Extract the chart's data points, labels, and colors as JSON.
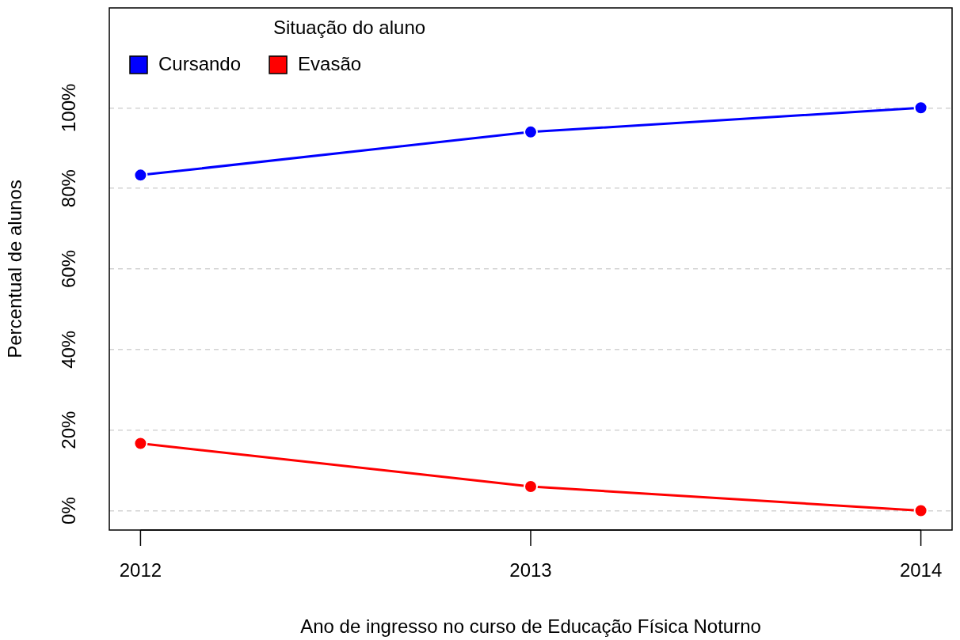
{
  "chart_data": {
    "type": "line",
    "xlabel": "Ano de ingresso no curso de Educação Física Noturno",
    "ylabel": "Percentual de alunos",
    "legend_title": "Situação do aluno",
    "x": [
      2012,
      2013,
      2014
    ],
    "xlim": [
      2011.92,
      2014.08
    ],
    "xticks": [
      2012,
      2013,
      2014
    ],
    "ylim": [
      -4.8,
      124.8
    ],
    "yticks": [
      {
        "value": 0,
        "label": "0%"
      },
      {
        "value": 20,
        "label": "20%"
      },
      {
        "value": 40,
        "label": "40%"
      },
      {
        "value": 60,
        "label": "60%"
      },
      {
        "value": 80,
        "label": "80%"
      },
      {
        "value": 100,
        "label": "100%"
      }
    ],
    "grid": "y",
    "legend": "top left",
    "marker": "circle",
    "line_style": "solid",
    "series": [
      {
        "name": "Cursando",
        "color": "#0000ff",
        "values": [
          83.3,
          94,
          100
        ]
      },
      {
        "name": "Evasão",
        "color": "#ff0000",
        "values": [
          16.7,
          6,
          0
        ]
      }
    ]
  }
}
